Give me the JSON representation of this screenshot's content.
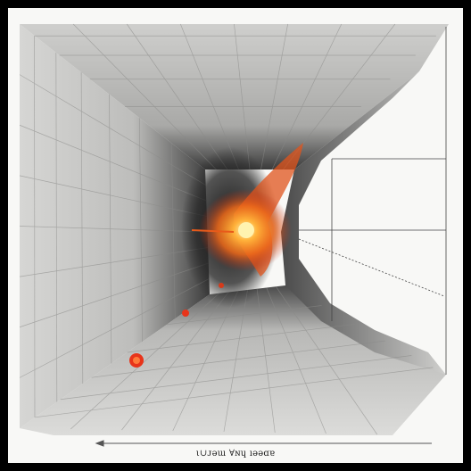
{
  "caption": "ι∪ᴊǝɯ ∀ɴɥ ıǝǝɑɐ",
  "colors": {
    "background": "#f8f8f6",
    "wall_light": "#dadad8",
    "wall_dark": "#2a2a2a",
    "glow_core": "#fff3b0",
    "glow_mid": "#ff8a1a",
    "glow_outer": "#e0401a",
    "frame": "#000000"
  },
  "icons": {
    "tunnel": "perspective-tunnel-icon",
    "glow": "energy-burst-icon"
  }
}
